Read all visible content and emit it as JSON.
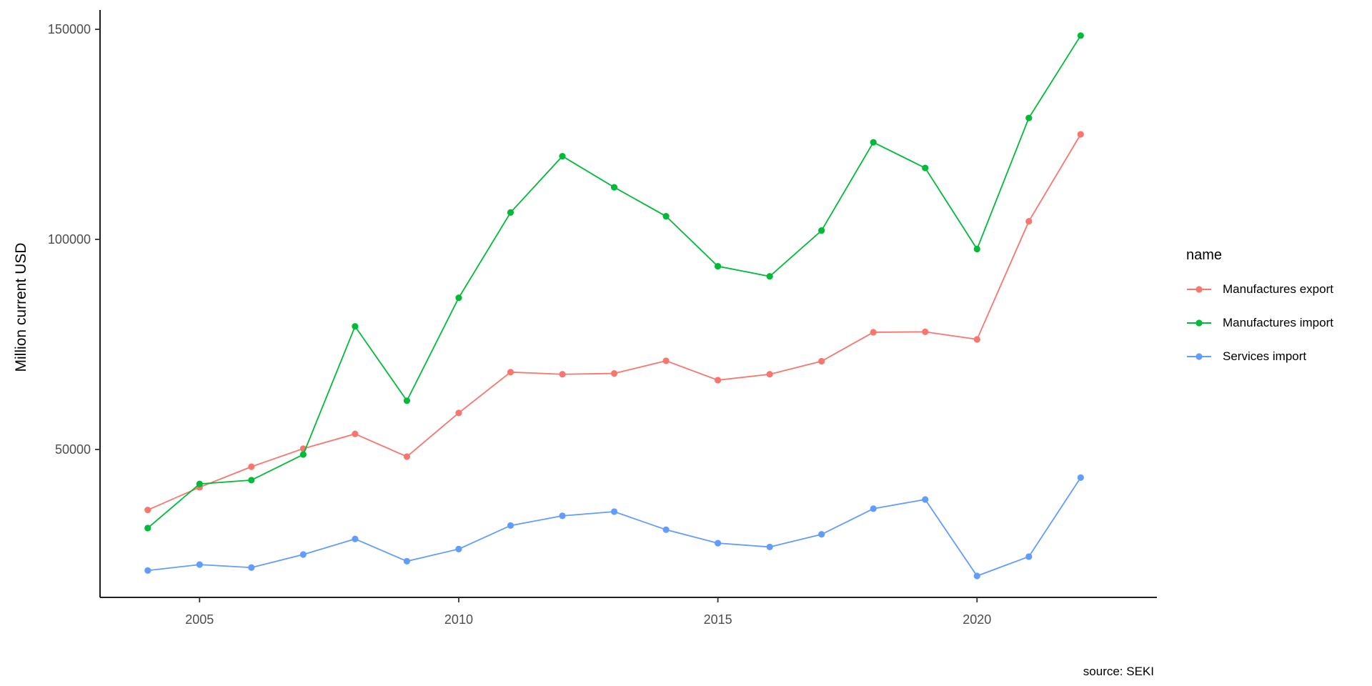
{
  "chart_data": {
    "type": "line",
    "title": "",
    "xlabel": "",
    "ylabel": "Million current USD",
    "caption": "source: SEKI",
    "grid": false,
    "background": "#ffffff",
    "axis_color": "#000000",
    "tick_label_color": "#4d4d4d",
    "x": [
      2004,
      2005,
      2006,
      2007,
      2008,
      2009,
      2010,
      2011,
      2012,
      2013,
      2014,
      2015,
      2016,
      2017,
      2018,
      2019,
      2020,
      2021,
      2022
    ],
    "x_ticks": [
      2005,
      2010,
      2015,
      2020
    ],
    "y_ticks": [
      50000,
      100000,
      150000
    ],
    "ylim": [
      15000,
      155000
    ],
    "legend": {
      "title": "name",
      "position": "right"
    },
    "series": [
      {
        "name": "Manufactures export",
        "color": "#F8766D",
        "values": [
          35600,
          41000,
          45900,
          50200,
          53700,
          48300,
          58700,
          68400,
          67900,
          68100,
          71100,
          66500,
          67900,
          71000,
          77900,
          78000,
          76200,
          104300,
          125000
        ]
      },
      {
        "name": "Manufactures import",
        "color": "#00BA38",
        "values": [
          31300,
          41800,
          42700,
          48800,
          79300,
          61600,
          86100,
          106400,
          119800,
          112400,
          105500,
          93600,
          91200,
          102100,
          123100,
          117000,
          97700,
          128900,
          148500
        ]
      },
      {
        "name": "Services import",
        "color": "#619CFF",
        "values": [
          21200,
          22600,
          21900,
          25000,
          28700,
          23400,
          26300,
          31900,
          34200,
          35200,
          30900,
          27700,
          26800,
          29800,
          35900,
          38100,
          19900,
          24500,
          43300
        ]
      }
    ]
  }
}
